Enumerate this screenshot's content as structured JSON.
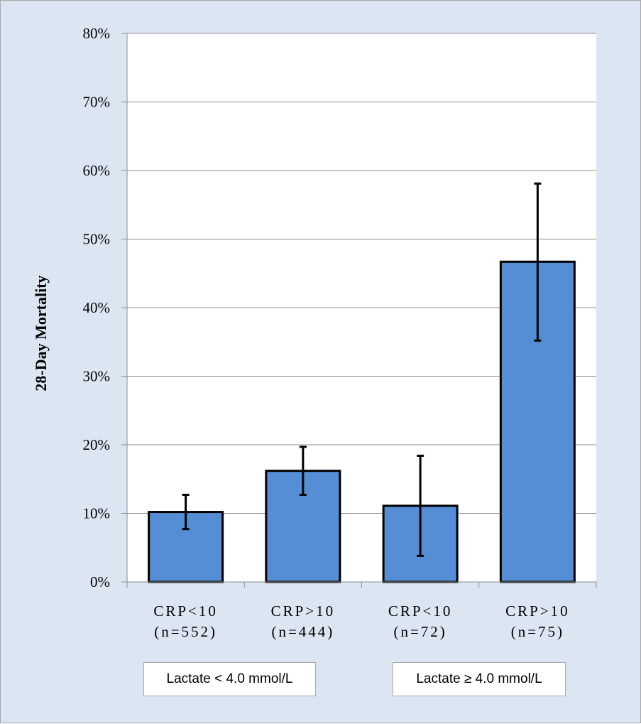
{
  "chart_data": {
    "type": "bar",
    "ylabel": "28-Day Mortality",
    "ylim": [
      0,
      80
    ],
    "yticks": [
      "0%",
      "10%",
      "20%",
      "30%",
      "40%",
      "50%",
      "60%",
      "70%",
      "80%"
    ],
    "grid": true,
    "bar_color": "#558ed5",
    "categories": [
      {
        "line1": "CRP<10",
        "line2": "(n=552)"
      },
      {
        "line1": "CRP>10",
        "line2": "(n=444)"
      },
      {
        "line1": "CRP<10",
        "line2": "(n=72)"
      },
      {
        "line1": "CRP>10",
        "line2": "(n=75)"
      }
    ],
    "values": [
      10.2,
      16.2,
      11.1,
      46.7
    ],
    "error_low": [
      7.7,
      12.7,
      3.8,
      35.2
    ],
    "error_high": [
      12.7,
      19.7,
      18.4,
      58.1
    ],
    "groups": [
      {
        "label": "Lactate < 4.0 mmol/L",
        "span": [
          0,
          1
        ]
      },
      {
        "label": "Lactate ≥ 4.0 mmol/L",
        "span": [
          2,
          3
        ]
      }
    ]
  }
}
